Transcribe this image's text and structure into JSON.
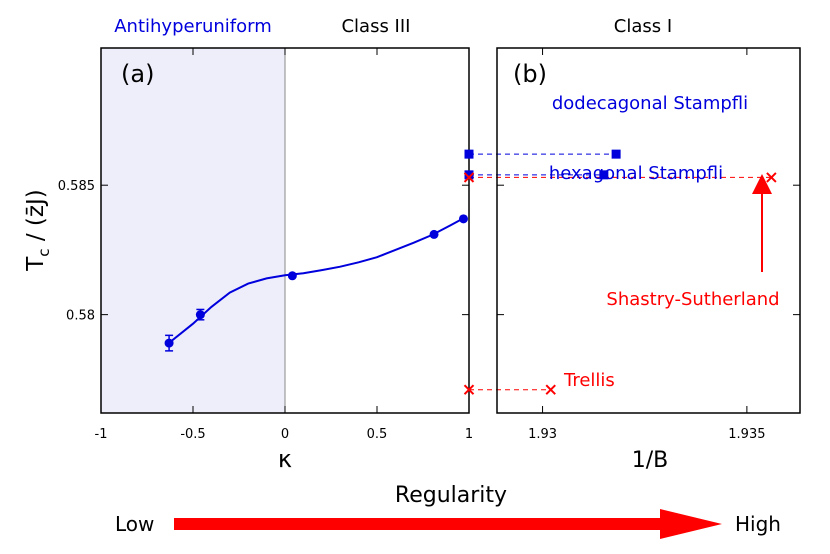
{
  "colors": {
    "blue": "#0000dd",
    "red": "#ff0000",
    "shade": "#eeeefb",
    "axis": "#000000"
  },
  "region_labels": {
    "antihyperuniform": "Antihyperuniform",
    "class3": "Class III",
    "class1": "Class I"
  },
  "ylabel": {
    "main": "T",
    "sub": "c",
    "rest": " / (z̄J)"
  },
  "arrow": {
    "title": "Regularity",
    "low": "Low",
    "high": "High"
  },
  "chart_data": [
    {
      "type": "line",
      "panel_label": "(a)",
      "xlabel": "κ",
      "xlim": [
        -1,
        1
      ],
      "ylim": [
        0.5762,
        0.5903
      ],
      "xticks": [
        -1,
        -0.5,
        0,
        0.5,
        1
      ],
      "xtick_labels": [
        "-1",
        "-0.5",
        "0",
        "0.5",
        "1"
      ],
      "yticks": [
        0.58,
        0.585
      ],
      "ytick_labels": [
        "0.58",
        "0.585"
      ],
      "shaded_range": [
        -1,
        0
      ],
      "points": [
        {
          "x": -0.63,
          "y": 0.5789,
          "err": 0.0003
        },
        {
          "x": -0.46,
          "y": 0.58,
          "err": 0.0002
        },
        {
          "x": 0.04,
          "y": 0.5815,
          "err": 0
        },
        {
          "x": 0.81,
          "y": 0.5831,
          "err": 0
        },
        {
          "x": 0.97,
          "y": 0.5837,
          "err": 0
        }
      ],
      "curve": [
        [
          -0.64,
          0.57885
        ],
        [
          -0.5,
          0.57965
        ],
        [
          -0.4,
          0.5803
        ],
        [
          -0.3,
          0.58085
        ],
        [
          -0.2,
          0.5812
        ],
        [
          -0.1,
          0.5814
        ],
        [
          0.0,
          0.58152
        ],
        [
          0.1,
          0.5816
        ],
        [
          0.2,
          0.58172
        ],
        [
          0.3,
          0.58185
        ],
        [
          0.4,
          0.58202
        ],
        [
          0.5,
          0.58222
        ],
        [
          0.6,
          0.5825
        ],
        [
          0.7,
          0.58278
        ],
        [
          0.8,
          0.58308
        ],
        [
          0.9,
          0.58345
        ],
        [
          0.97,
          0.58372
        ]
      ]
    },
    {
      "type": "scatter",
      "panel_label": "(b)",
      "xlabel": "1/B",
      "xlim": [
        1.9282,
        1.9363
      ],
      "ylim": [
        0.5762,
        0.5903
      ],
      "xticks": [
        1.93,
        1.935
      ],
      "xtick_labels": [
        "1.93",
        "1.935"
      ],
      "series": [
        {
          "name": "dodecagonal Stampfli",
          "marker": "square",
          "x": 1.9318,
          "y": 0.5862,
          "color": "#0000dd"
        },
        {
          "name": "hexagonal Stampfli",
          "marker": "square",
          "x": 1.9315,
          "y": 0.5854,
          "color": "#0000dd"
        },
        {
          "name": "Shastry-Sutherland",
          "marker": "x",
          "x": 1.9356,
          "y": 0.5853,
          "color": "#ff0000"
        },
        {
          "name": "Trellis",
          "marker": "x",
          "x": 1.9302,
          "y": 0.5771,
          "color": "#ff0000"
        }
      ]
    }
  ]
}
